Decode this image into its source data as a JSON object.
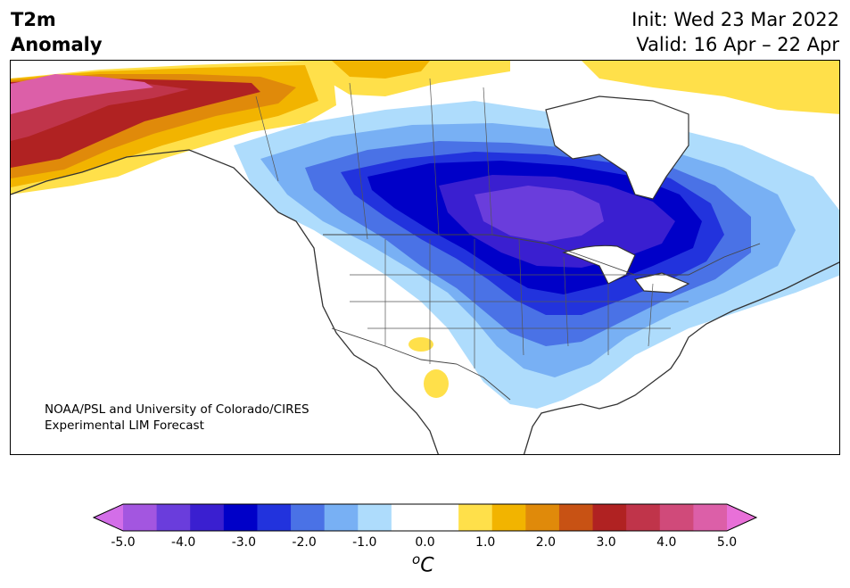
{
  "header": {
    "title_line1": "T2m",
    "title_line2": "Anomaly",
    "init": "Init: Wed 23 Mar 2022",
    "valid": "Valid: 16 Apr – 22 Apr"
  },
  "map": {
    "credit_line1": "NOAA/PSL and University of Colorado/CIRES",
    "credit_line2": "Experimental LIM Forecast"
  },
  "colorbar": {
    "unit": "C",
    "unit_sup": "o",
    "ticks": [
      "-5.0",
      "-4.0",
      "-3.0",
      "-2.0",
      "-1.0",
      "0.0",
      "1.0",
      "2.0",
      "3.0",
      "4.0",
      "5.0"
    ],
    "colors": {
      "cold_extend": "#d36ee8",
      "bins": [
        "#a356e0",
        "#6a3ddc",
        "#3a1fd0",
        "#0000c8",
        "#2233dd",
        "#4a72e6",
        "#78b0f4",
        "#aedcfc",
        "#ffffff",
        "#ffffff",
        "#ffe04a",
        "#f2b400",
        "#e08a0a",
        "#c85214",
        "#b02222",
        "#c0344a",
        "#d04a7a",
        "#dc5fa8"
      ],
      "warm_extend": "#e870d8"
    }
  }
}
